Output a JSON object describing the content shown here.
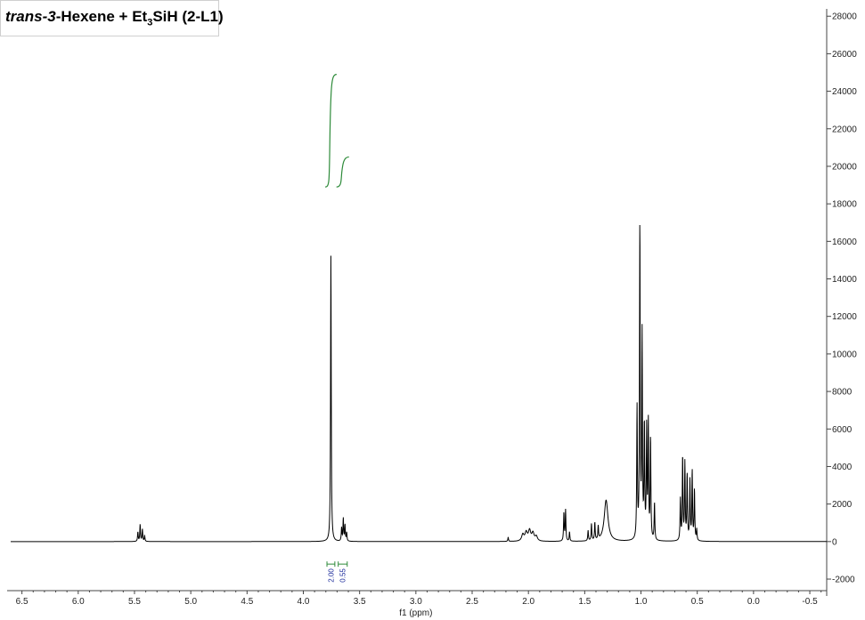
{
  "title": {
    "prefix_italic": "trans-3",
    "main": "-Hexene + Et",
    "subscript": "3",
    "suffix": "SiH (2-L1)"
  },
  "chart_data": {
    "type": "line",
    "title": "trans-3-Hexene + Et3SiH (2-L1)",
    "xlabel": "f1 (ppm)",
    "ylabel": "",
    "xlim": [
      6.6,
      -0.65
    ],
    "ylim": [
      -2900,
      28200
    ],
    "x_ticks": [
      6.5,
      6.0,
      5.5,
      5.0,
      4.5,
      4.0,
      3.5,
      3.0,
      2.5,
      2.0,
      1.5,
      1.0,
      0.5,
      0.0,
      -0.5
    ],
    "x_tick_labels": [
      "6.5",
      "6.0",
      "5.5",
      "5.0",
      "4.5",
      "4.0",
      "3.5",
      "3.0",
      "2.5",
      "2.0",
      "1.5",
      "1.0",
      "0.5",
      "0.0",
      "-0.5"
    ],
    "y_ticks": [
      -2000,
      0,
      2000,
      4000,
      6000,
      8000,
      10000,
      12000,
      14000,
      16000,
      18000,
      20000,
      22000,
      24000,
      26000,
      28000
    ],
    "y_tick_labels": [
      "-2000",
      "0",
      "2000",
      "4000",
      "6000",
      "8000",
      "10000",
      "12000",
      "14000",
      "16000",
      "18000",
      "20000",
      "22000",
      "24000",
      "26000",
      "28000"
    ],
    "peaks": [
      {
        "x": 5.47,
        "y": 500
      },
      {
        "x": 5.45,
        "y": 900
      },
      {
        "x": 5.43,
        "y": 650
      },
      {
        "x": 5.41,
        "y": 300
      },
      {
        "x": 3.755,
        "y": 15300
      },
      {
        "x": 3.66,
        "y": 700
      },
      {
        "x": 3.645,
        "y": 1200
      },
      {
        "x": 3.63,
        "y": 850
      },
      {
        "x": 3.615,
        "y": 450
      },
      {
        "x": 2.18,
        "y": 220
      },
      {
        "x": 2.05,
        "y": 350
      },
      {
        "x": 2.02,
        "y": 450
      },
      {
        "x": 1.99,
        "y": 550
      },
      {
        "x": 1.96,
        "y": 420
      },
      {
        "x": 1.93,
        "y": 250
      },
      {
        "x": 1.685,
        "y": 1500
      },
      {
        "x": 1.67,
        "y": 1650
      },
      {
        "x": 1.635,
        "y": 500
      },
      {
        "x": 1.47,
        "y": 550
      },
      {
        "x": 1.44,
        "y": 900
      },
      {
        "x": 1.41,
        "y": 950
      },
      {
        "x": 1.38,
        "y": 700
      },
      {
        "x": 1.31,
        "y": 2200
      },
      {
        "x": 1.035,
        "y": 7000
      },
      {
        "x": 1.01,
        "y": 16800
      },
      {
        "x": 0.99,
        "y": 10800
      },
      {
        "x": 0.97,
        "y": 6000
      },
      {
        "x": 0.95,
        "y": 5800
      },
      {
        "x": 0.935,
        "y": 6200
      },
      {
        "x": 0.915,
        "y": 5400
      },
      {
        "x": 0.88,
        "y": 2000
      },
      {
        "x": 0.65,
        "y": 2200
      },
      {
        "x": 0.63,
        "y": 4500
      },
      {
        "x": 0.61,
        "y": 4100
      },
      {
        "x": 0.59,
        "y": 3500
      },
      {
        "x": 0.565,
        "y": 3200
      },
      {
        "x": 0.545,
        "y": 3700
      },
      {
        "x": 0.525,
        "y": 2700
      },
      {
        "x": 0.505,
        "y": 600
      }
    ],
    "integrals": [
      {
        "from": 3.79,
        "to": 3.72,
        "value": "2.00"
      },
      {
        "from": 3.69,
        "to": 3.61,
        "value": "0.55"
      }
    ],
    "colors": {
      "spectrum": "#000000",
      "integral_curve": "#2e8b3a",
      "integral_label": "#1a2a9a"
    },
    "grid": false
  }
}
